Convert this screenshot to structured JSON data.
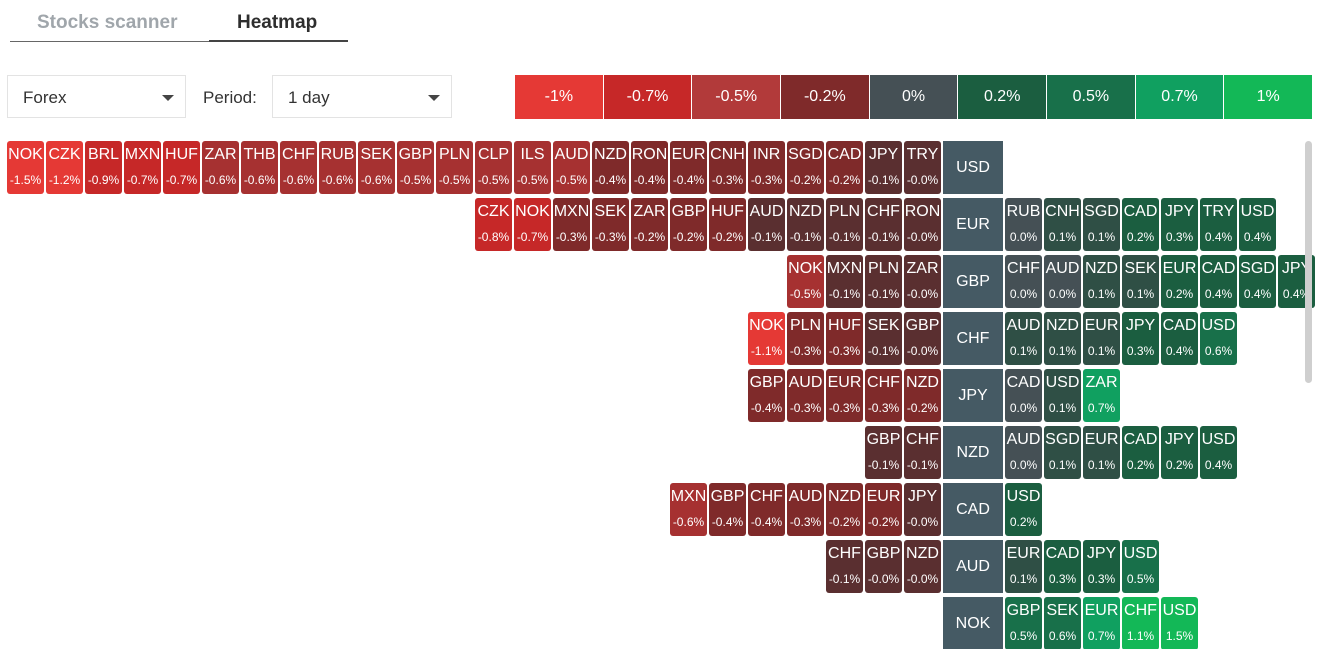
{
  "tabs": [
    {
      "label": "Stocks scanner",
      "active": false
    },
    {
      "label": "Heatmap",
      "active": true
    }
  ],
  "market_select": {
    "value": "Forex"
  },
  "period": {
    "label": "Period:",
    "value": "1 day"
  },
  "legend": [
    {
      "label": "-1%",
      "color": "#e53935"
    },
    {
      "label": "-0.7%",
      "color": "#c62828"
    },
    {
      "label": "-0.5%",
      "color": "#b23a3a"
    },
    {
      "label": "-0.2%",
      "color": "#7f2a2a"
    },
    {
      "label": "0%",
      "color": "#455055"
    },
    {
      "label": "0.2%",
      "color": "#1b5e40"
    },
    {
      "label": "0.5%",
      "color": "#18704a"
    },
    {
      "label": "0.7%",
      "color": "#10a060"
    },
    {
      "label": "1%",
      "color": "#13b857"
    }
  ],
  "rows": [
    {
      "base": "USD",
      "neg": [
        [
          "NOK",
          "-1.5%"
        ],
        [
          "CZK",
          "-1.2%"
        ],
        [
          "BRL",
          "-0.9%"
        ],
        [
          "MXN",
          "-0.7%"
        ],
        [
          "HUF",
          "-0.7%"
        ],
        [
          "ZAR",
          "-0.6%"
        ],
        [
          "THB",
          "-0.6%"
        ],
        [
          "CHF",
          "-0.6%"
        ],
        [
          "RUB",
          "-0.6%"
        ],
        [
          "SEK",
          "-0.6%"
        ],
        [
          "GBP",
          "-0.5%"
        ],
        [
          "PLN",
          "-0.5%"
        ],
        [
          "CLP",
          "-0.5%"
        ],
        [
          "ILS",
          "-0.5%"
        ],
        [
          "AUD",
          "-0.5%"
        ],
        [
          "NZD",
          "-0.4%"
        ],
        [
          "RON",
          "-0.4%"
        ],
        [
          "EUR",
          "-0.4%"
        ],
        [
          "CNH",
          "-0.3%"
        ],
        [
          "INR",
          "-0.3%"
        ],
        [
          "SGD",
          "-0.2%"
        ],
        [
          "CAD",
          "-0.2%"
        ],
        [
          "JPY",
          "-0.1%"
        ],
        [
          "TRY",
          "-0.0%"
        ]
      ],
      "pos": []
    },
    {
      "base": "EUR",
      "neg": [
        [
          "CZK",
          "-0.8%"
        ],
        [
          "NOK",
          "-0.7%"
        ],
        [
          "MXN",
          "-0.3%"
        ],
        [
          "SEK",
          "-0.3%"
        ],
        [
          "ZAR",
          "-0.2%"
        ],
        [
          "GBP",
          "-0.2%"
        ],
        [
          "HUF",
          "-0.2%"
        ],
        [
          "AUD",
          "-0.1%"
        ],
        [
          "NZD",
          "-0.1%"
        ],
        [
          "PLN",
          "-0.1%"
        ],
        [
          "CHF",
          "-0.1%"
        ],
        [
          "RON",
          "-0.0%"
        ]
      ],
      "pos": [
        [
          "RUB",
          "0.0%"
        ],
        [
          "CNH",
          "0.1%"
        ],
        [
          "SGD",
          "0.1%"
        ],
        [
          "CAD",
          "0.2%"
        ],
        [
          "JPY",
          "0.3%"
        ],
        [
          "TRY",
          "0.4%"
        ],
        [
          "USD",
          "0.4%"
        ]
      ]
    },
    {
      "base": "GBP",
      "neg": [
        [
          "NOK",
          "-0.5%"
        ],
        [
          "MXN",
          "-0.1%"
        ],
        [
          "PLN",
          "-0.1%"
        ],
        [
          "ZAR",
          "-0.0%"
        ]
      ],
      "pos": [
        [
          "CHF",
          "0.0%"
        ],
        [
          "AUD",
          "0.0%"
        ],
        [
          "NZD",
          "0.1%"
        ],
        [
          "SEK",
          "0.1%"
        ],
        [
          "EUR",
          "0.2%"
        ],
        [
          "CAD",
          "0.4%"
        ],
        [
          "SGD",
          "0.4%"
        ],
        [
          "JPY",
          "0.4%"
        ]
      ]
    },
    {
      "base": "CHF",
      "neg": [
        [
          "NOK",
          "-1.1%"
        ],
        [
          "PLN",
          "-0.3%"
        ],
        [
          "HUF",
          "-0.3%"
        ],
        [
          "SEK",
          "-0.1%"
        ],
        [
          "GBP",
          "-0.0%"
        ]
      ],
      "pos": [
        [
          "AUD",
          "0.1%"
        ],
        [
          "NZD",
          "0.1%"
        ],
        [
          "EUR",
          "0.1%"
        ],
        [
          "JPY",
          "0.3%"
        ],
        [
          "CAD",
          "0.4%"
        ],
        [
          "USD",
          "0.6%"
        ]
      ]
    },
    {
      "base": "JPY",
      "neg": [
        [
          "GBP",
          "-0.4%"
        ],
        [
          "AUD",
          "-0.3%"
        ],
        [
          "EUR",
          "-0.3%"
        ],
        [
          "CHF",
          "-0.3%"
        ],
        [
          "NZD",
          "-0.2%"
        ]
      ],
      "pos": [
        [
          "CAD",
          "0.0%"
        ],
        [
          "USD",
          "0.1%"
        ],
        [
          "ZAR",
          "0.7%"
        ]
      ]
    },
    {
      "base": "NZD",
      "neg": [
        [
          "GBP",
          "-0.1%"
        ],
        [
          "CHF",
          "-0.1%"
        ]
      ],
      "pos": [
        [
          "AUD",
          "0.0%"
        ],
        [
          "SGD",
          "0.1%"
        ],
        [
          "EUR",
          "0.1%"
        ],
        [
          "CAD",
          "0.2%"
        ],
        [
          "JPY",
          "0.2%"
        ],
        [
          "USD",
          "0.4%"
        ]
      ]
    },
    {
      "base": "CAD",
      "neg": [
        [
          "MXN",
          "-0.6%"
        ],
        [
          "GBP",
          "-0.4%"
        ],
        [
          "CHF",
          "-0.4%"
        ],
        [
          "AUD",
          "-0.3%"
        ],
        [
          "NZD",
          "-0.2%"
        ],
        [
          "EUR",
          "-0.2%"
        ],
        [
          "JPY",
          "-0.0%"
        ]
      ],
      "pos": [
        [
          "USD",
          "0.2%"
        ]
      ]
    },
    {
      "base": "AUD",
      "neg": [
        [
          "CHF",
          "-0.1%"
        ],
        [
          "GBP",
          "-0.0%"
        ],
        [
          "NZD",
          "-0.0%"
        ]
      ],
      "pos": [
        [
          "EUR",
          "0.1%"
        ],
        [
          "CAD",
          "0.3%"
        ],
        [
          "JPY",
          "0.3%"
        ],
        [
          "USD",
          "0.5%"
        ]
      ]
    },
    {
      "base": "NOK",
      "neg": [],
      "pos": [
        [
          "GBP",
          "0.5%"
        ],
        [
          "SEK",
          "0.6%"
        ],
        [
          "EUR",
          "0.7%"
        ],
        [
          "CHF",
          "1.1%"
        ],
        [
          "USD",
          "1.5%"
        ]
      ]
    }
  ]
}
